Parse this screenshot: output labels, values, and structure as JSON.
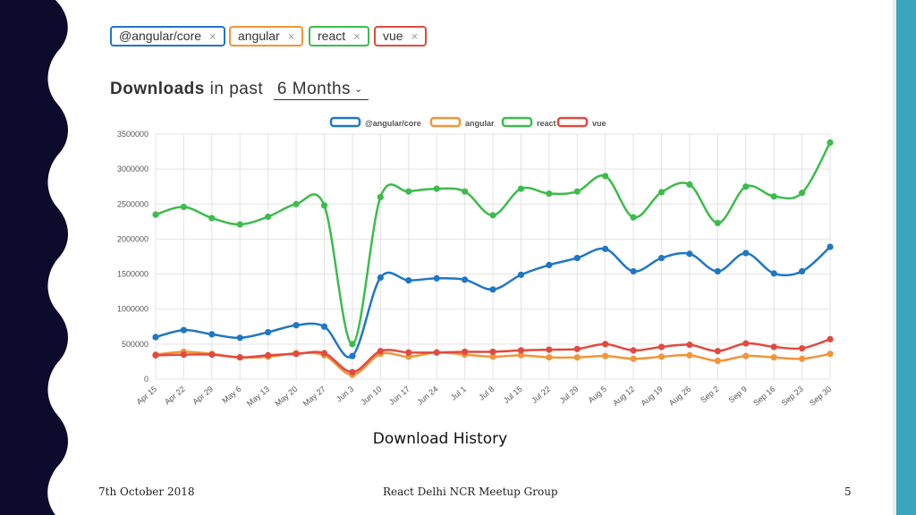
{
  "packages": [
    {
      "name": "@angular/core",
      "color": "#1f77c4"
    },
    {
      "name": "angular",
      "color": "#f0953a"
    },
    {
      "name": "react",
      "color": "#3cbc4c"
    },
    {
      "name": "vue",
      "color": "#e04a3f"
    }
  ],
  "tag_remove_glyph": "×",
  "heading": {
    "bold": "Downloads",
    "rest": "in past",
    "period": "6 Months"
  },
  "caption": "Download History",
  "footer": {
    "date": "7th October 2018",
    "event": "React Delhi NCR Meetup Group",
    "page": "5"
  },
  "chart_data": {
    "type": "line",
    "categories": [
      "Apr 15",
      "Apr 22",
      "Apr 29",
      "May 6",
      "May 13",
      "May 20",
      "May 27",
      "Jun 3",
      "Jun 10",
      "Jun 17",
      "Jun 24",
      "Jul 1",
      "Jul 8",
      "Jul 15",
      "Jul 22",
      "Jul 29",
      "Aug 5",
      "Aug 12",
      "Aug 19",
      "Aug 26",
      "Sep 2",
      "Sep 9",
      "Sep 16",
      "Sep 23",
      "Sep 30"
    ],
    "ylim": [
      0,
      3500000
    ],
    "yticks": [
      0,
      500000,
      1000000,
      1500000,
      2000000,
      2500000,
      3000000,
      3500000
    ],
    "grid": true,
    "legend_position": "top",
    "series": [
      {
        "name": "@angular/core",
        "color": "#1f77c4",
        "values": [
          600000,
          700000,
          640000,
          590000,
          670000,
          770000,
          750000,
          330000,
          1450000,
          1410000,
          1440000,
          1420000,
          1280000,
          1490000,
          1630000,
          1730000,
          1860000,
          1540000,
          1730000,
          1790000,
          1540000,
          1800000,
          1510000,
          1540000,
          1890000
        ]
      },
      {
        "name": "angular",
        "color": "#f0953a",
        "values": [
          350000,
          390000,
          360000,
          310000,
          320000,
          370000,
          340000,
          60000,
          360000,
          320000,
          380000,
          350000,
          320000,
          340000,
          310000,
          310000,
          330000,
          290000,
          320000,
          340000,
          260000,
          330000,
          310000,
          290000,
          360000
        ]
      },
      {
        "name": "react",
        "color": "#3cbc4c",
        "values": [
          2350000,
          2460000,
          2300000,
          2210000,
          2320000,
          2500000,
          2480000,
          500000,
          2600000,
          2680000,
          2720000,
          2680000,
          2340000,
          2720000,
          2650000,
          2680000,
          2900000,
          2310000,
          2670000,
          2780000,
          2230000,
          2750000,
          2610000,
          2660000,
          3380000
        ]
      },
      {
        "name": "vue",
        "color": "#e04a3f",
        "values": [
          340000,
          350000,
          350000,
          310000,
          340000,
          360000,
          370000,
          100000,
          400000,
          380000,
          380000,
          390000,
          390000,
          410000,
          420000,
          430000,
          500000,
          410000,
          460000,
          490000,
          400000,
          510000,
          460000,
          440000,
          570000
        ]
      }
    ]
  }
}
